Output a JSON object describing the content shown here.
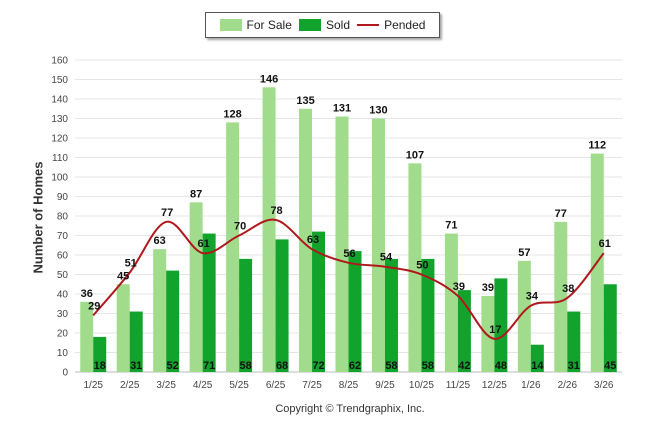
{
  "chart_data": {
    "type": "bar",
    "title": "",
    "xlabel": "",
    "ylabel": "Number of Homes",
    "ylim": [
      0,
      160
    ],
    "ytick_step": 10,
    "categories": [
      "1/25",
      "2/25",
      "3/25",
      "4/25",
      "5/25",
      "6/25",
      "7/25",
      "8/25",
      "9/25",
      "10/25",
      "11/25",
      "12/25",
      "1/26",
      "2/26",
      "3/26"
    ],
    "series": [
      {
        "name": "For Sale",
        "type": "bar",
        "color": "#a0dc8c",
        "values": [
          36,
          45,
          63,
          87,
          128,
          146,
          135,
          131,
          130,
          107,
          71,
          39,
          57,
          77,
          112
        ]
      },
      {
        "name": "Sold",
        "type": "bar",
        "color": "#12a32c",
        "values": [
          18,
          31,
          52,
          71,
          58,
          68,
          72,
          62,
          58,
          58,
          42,
          48,
          14,
          31,
          45
        ]
      },
      {
        "name": "Pended",
        "type": "line",
        "color": "#b0181e",
        "values": [
          29,
          51,
          77,
          61,
          70,
          78,
          63,
          56,
          54,
          50,
          39,
          17,
          34,
          38,
          61
        ]
      }
    ],
    "legend": [
      "For Sale",
      "Sold",
      "Pended"
    ],
    "legend_position": "top-center",
    "grid": true
  },
  "footer": {
    "copyright": "Copyright © Trendgraphix, Inc."
  }
}
